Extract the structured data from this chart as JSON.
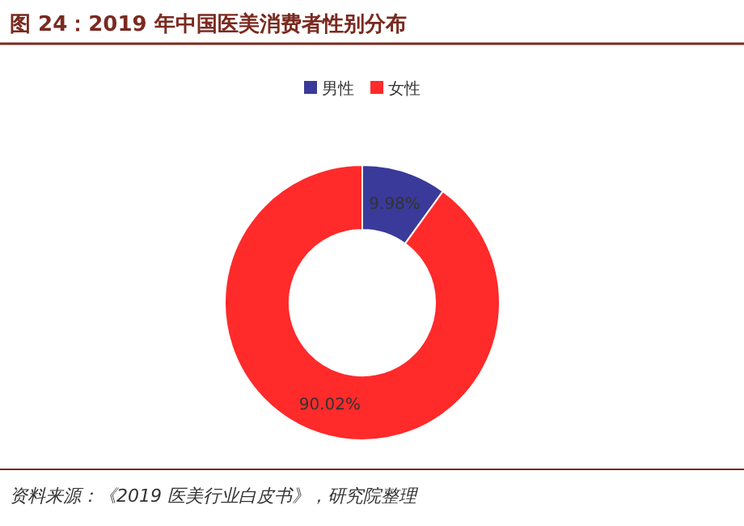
{
  "chart_data": {
    "type": "donut",
    "title": "图 24：2019 年中国医美消费者性别分布",
    "categories": [
      "男性",
      "女性"
    ],
    "values": [
      9.98,
      90.02
    ],
    "colors": [
      "#3a3a9a",
      "#ff2a2a"
    ],
    "legend": "top",
    "value_labels": [
      "9.98%",
      "90.02%"
    ],
    "annotations": [
      "资料来源：《2019 医美行业白皮书》，研究院整理"
    ]
  }
}
